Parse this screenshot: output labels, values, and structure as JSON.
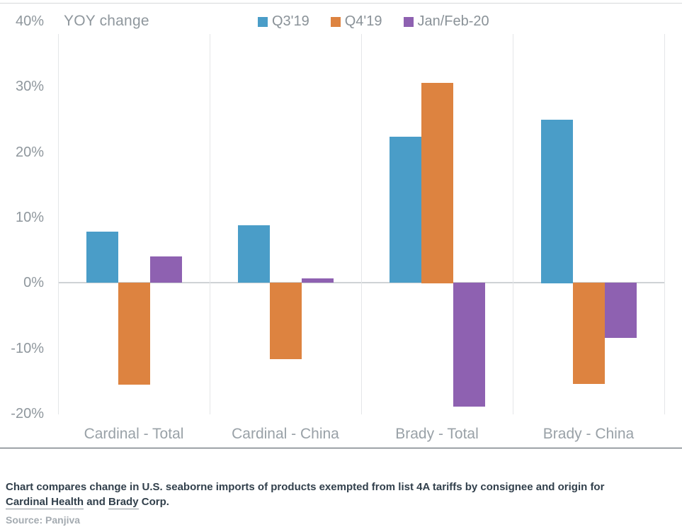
{
  "chart_data": {
    "type": "bar",
    "title": "YOY change",
    "categories": [
      "Cardinal - Total",
      "Cardinal - China",
      "Brady - Total",
      "Brady - China"
    ],
    "series": [
      {
        "name": "Q3'19",
        "color": "#4A9DC8",
        "values": [
          7.8,
          8.8,
          22.3,
          25.0
        ]
      },
      {
        "name": "Q4'19",
        "color": "#DD8340",
        "values": [
          -15.6,
          -11.7,
          30.6,
          -15.5
        ]
      },
      {
        "name": "Jan/Feb-20",
        "color": "#8E61B1",
        "values": [
          4.0,
          0.7,
          -18.9,
          -8.5
        ]
      }
    ],
    "y_axis": {
      "min": -20,
      "max": 40,
      "unit": "%",
      "ticks": [
        {
          "value": 40,
          "label": "40%"
        },
        {
          "value": 30,
          "label": "30%"
        },
        {
          "value": 20,
          "label": "20%"
        },
        {
          "value": 10,
          "label": "10%"
        },
        {
          "value": 0,
          "label": "0%"
        },
        {
          "value": -10,
          "label": "-10%"
        },
        {
          "value": -20,
          "label": "-20%"
        }
      ]
    },
    "legend_position": "top",
    "grid": "vertical group separators only, horizontal line at 0%"
  },
  "footer": {
    "caption_segments": [
      {
        "text": "Chart compares change in U.S. seaborne imports of products exempted from list 4A tariffs by consignee and origin for",
        "underline": false,
        "break_after": true
      },
      {
        "text": "Cardinal Health",
        "underline": true
      },
      {
        "text": " and ",
        "underline": false
      },
      {
        "text": "Brady",
        "underline": true
      },
      {
        "text": " Corp.",
        "underline": false
      }
    ],
    "source": "Source: Panjiva"
  }
}
